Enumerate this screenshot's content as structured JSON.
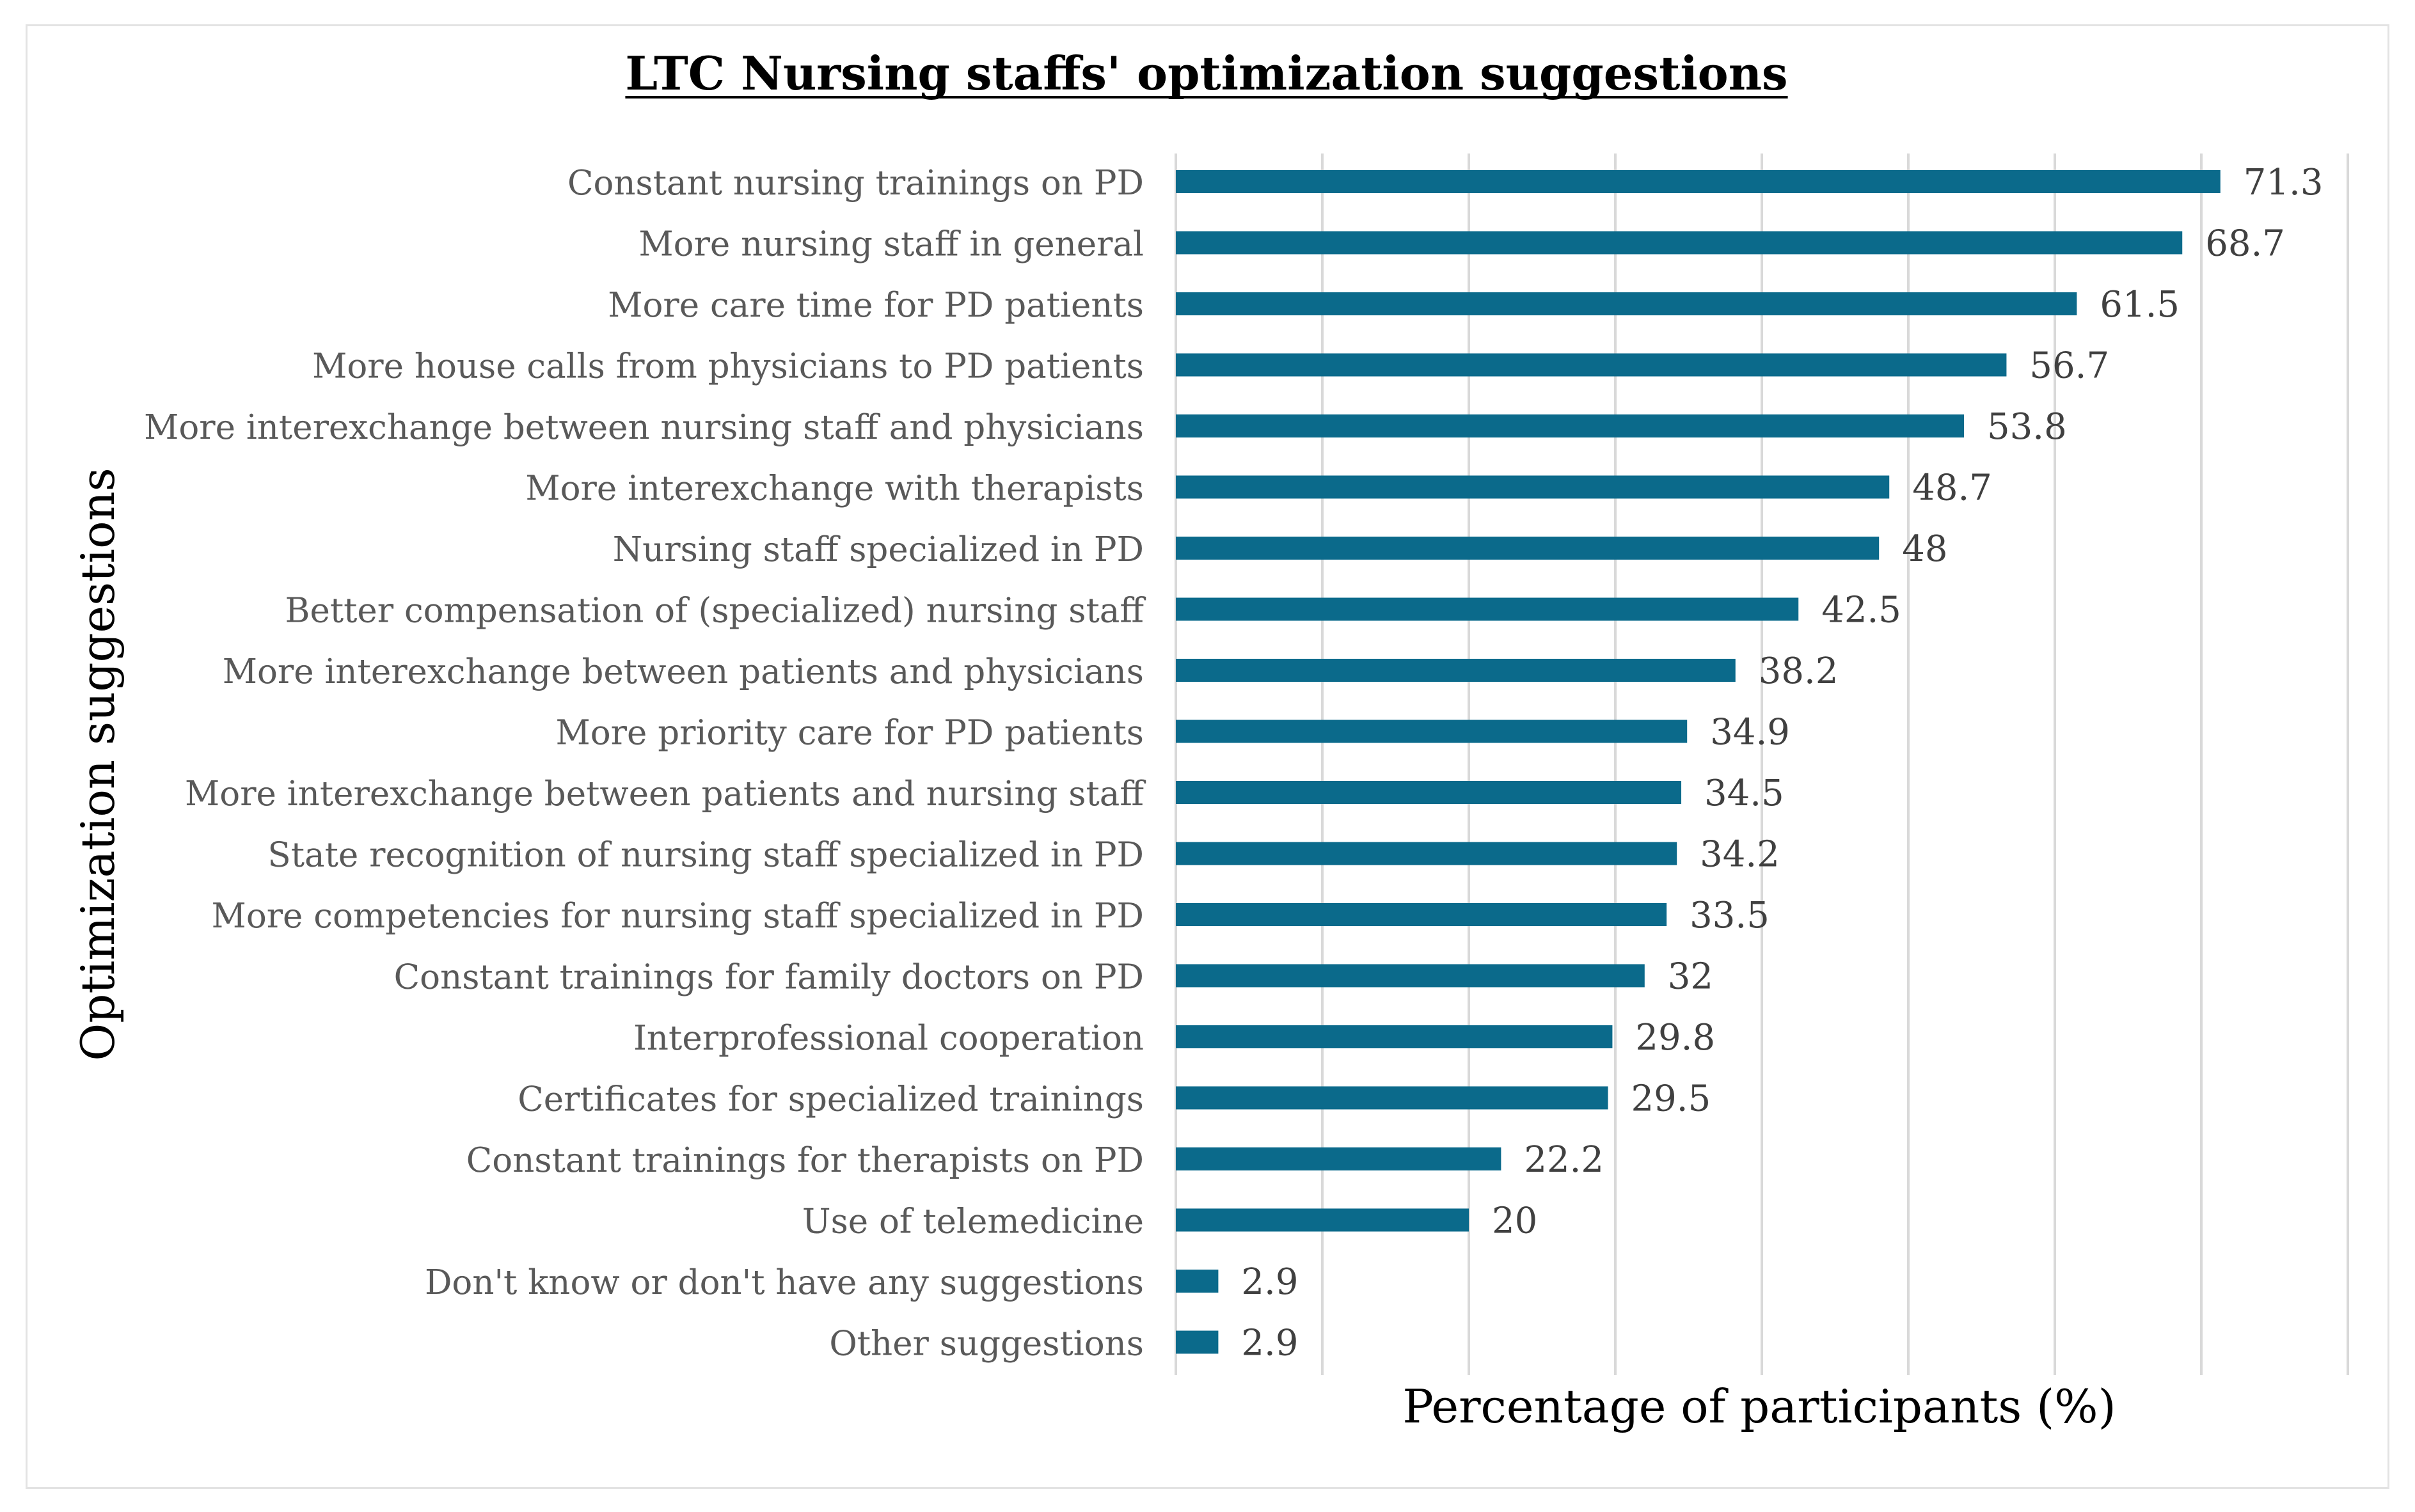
{
  "chart_data": {
    "type": "bar",
    "orientation": "horizontal",
    "title": "LTC Nursing staffs' optimization suggestions",
    "xlabel": "Percentage of participants (%)",
    "ylabel": "Optimization suggestions",
    "xlim": [
      0,
      80
    ],
    "grid": true,
    "bar_color": "#0B6A8B",
    "categories": [
      "Constant nursing trainings on PD",
      "More nursing staff in general",
      "More care time for PD patients",
      "More house calls from physicians  to PD patients",
      "More interexchange between nursing staff and physicians",
      "More interexchange with therapists",
      "Nursing staff specialized in PD",
      "Better compensation of (specialized) nursing staff",
      "More interexchange between patients and physicians",
      "More priority care for PD patients",
      "More interexchange between patients and nursing staff",
      "State recognition of nursing staff specialized in PD",
      "More competencies for nursing staff specialized in PD",
      "Constant trainings for family doctors on PD",
      "Interprofessional cooperation",
      "Certificates for specialized trainings",
      "Constant trainings for therapists on PD",
      "Use of telemedicine",
      "Don't know or don't have any suggestions",
      "Other suggestions"
    ],
    "values": [
      71.3,
      68.7,
      61.5,
      56.7,
      53.8,
      48.7,
      48,
      42.5,
      38.2,
      34.9,
      34.5,
      34.2,
      33.5,
      32,
      29.8,
      29.5,
      22.2,
      20,
      2.9,
      2.9
    ],
    "value_labels": [
      "71.3",
      "68.7",
      "61.5",
      "56.7",
      "53.8",
      "48.7",
      "48",
      "42.5",
      "38.2",
      "34.9",
      "34.5",
      "34.2",
      "33.5",
      "32",
      "29.8",
      "29.5",
      "22.2",
      "20",
      "2.9",
      "2.9"
    ]
  }
}
